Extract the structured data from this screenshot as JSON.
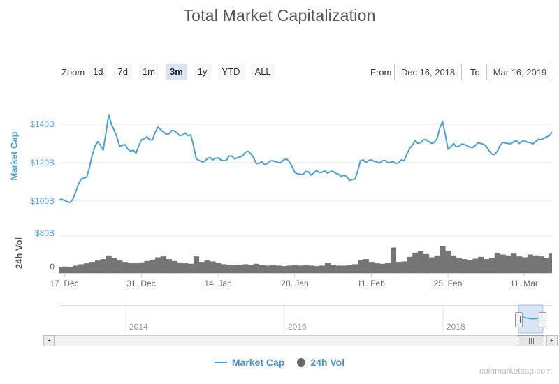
{
  "title": "Total Market Capitalization",
  "toolbar": {
    "zoom_label": "Zoom",
    "buttons": [
      {
        "label": "1d",
        "selected": false
      },
      {
        "label": "7d",
        "selected": false
      },
      {
        "label": "1m",
        "selected": false
      },
      {
        "label": "3m",
        "selected": true
      },
      {
        "label": "1y",
        "selected": false
      },
      {
        "label": "YTD",
        "selected": false
      },
      {
        "label": "ALL",
        "selected": false
      }
    ],
    "from_label": "From",
    "from_value": "Dec 16, 2018",
    "to_label": "To",
    "to_value": "Mar 16, 2019"
  },
  "chart_data": {
    "type": "line",
    "title": "Total Market Capitalization",
    "x_start": "Dec 16, 2018",
    "x_end": "Mar 16, 2019",
    "x_unit": "day",
    "x_tick_labels": [
      "17. Dec",
      "31. Dec",
      "14. Jan",
      "28. Jan",
      "11. Feb",
      "25. Feb",
      "11. Mar"
    ],
    "grid": true,
    "legend_position": "bottom",
    "panes": [
      {
        "name": "Market Cap",
        "type": "line",
        "ylabel": "Market Cap",
        "y_ticks": [
          "$140B",
          "$120B",
          "$100B"
        ],
        "ylim": [
          95,
          150
        ],
        "unit": "$B",
        "values": [
          100.8,
          100.3,
          99.3,
          105.0,
          111.5,
          112.5,
          124.0,
          131.0,
          126.5,
          145.0,
          137.0,
          128.5,
          129.5,
          126.0,
          125.0,
          132.0,
          133.5,
          132.0,
          138.5,
          136.0,
          135.0,
          136.5,
          134.0,
          135.5,
          134.5,
          122.0,
          120.5,
          122.0,
          121.5,
          122.5,
          121.0,
          123.5,
          122.0,
          123.0,
          125.5,
          124.5,
          119.5,
          120.5,
          119.5,
          121.0,
          120.0,
          121.5,
          120.5,
          115.0,
          114.0,
          115.5,
          113.5,
          116.0,
          115.0,
          114.5,
          115.5,
          114.0,
          113.5,
          110.8,
          111.5,
          121.0,
          120.0,
          121.5,
          120.5,
          121.0,
          120.0,
          120.5,
          120.0,
          121.0,
          127.5,
          131.5,
          130.5,
          132.0,
          130.0,
          132.5,
          141.5,
          127.0,
          130.0,
          128.5,
          129.5,
          128.0,
          129.0,
          130.0,
          128.5,
          124.5,
          126.0,
          130.5,
          130.0,
          131.0,
          130.0,
          131.5,
          130.5,
          131.0,
          132.0,
          133.5,
          136.0
        ]
      },
      {
        "name": "24h Vol",
        "type": "area",
        "ylabel": "24h Vol",
        "y_ticks": [
          "$80B",
          "0"
        ],
        "ylim": [
          0,
          80
        ],
        "unit": "$B",
        "values": [
          13,
          14,
          13,
          16,
          19,
          21,
          24,
          27,
          30,
          38,
          33,
          27,
          24,
          22,
          21,
          23,
          26,
          29,
          34,
          36,
          30,
          26,
          23,
          21,
          20,
          36,
          24,
          27,
          25,
          22,
          19,
          18,
          17,
          18,
          19,
          18,
          20,
          17,
          16,
          17,
          16,
          15,
          16,
          17,
          16,
          17,
          16,
          15,
          16,
          22,
          18,
          16,
          16,
          17,
          19,
          28,
          30,
          24,
          21,
          20,
          22,
          55,
          24,
          25,
          35,
          44,
          47,
          41,
          34,
          38,
          58,
          48,
          38,
          33,
          30,
          28,
          31,
          35,
          30,
          33,
          44,
          40,
          38,
          42,
          36,
          34,
          40,
          38,
          36,
          33,
          42
        ]
      }
    ]
  },
  "navigator": {
    "years": [
      "2014",
      "2016",
      "2018"
    ]
  },
  "legend": {
    "items": [
      {
        "label": "Market Cap",
        "symbol": "line"
      },
      {
        "label": "24h Vol",
        "symbol": "circle"
      }
    ]
  },
  "watermark": "coinmarketcap.com",
  "colors": {
    "market_cap_line": "#4a9fd8",
    "axis_label_blue": "#55a5da",
    "volume_bar": "#757575",
    "gridline": "#e6e6e6",
    "selected_button_bg": "#dce4f2",
    "navigator_selection": "#cadcf1"
  }
}
